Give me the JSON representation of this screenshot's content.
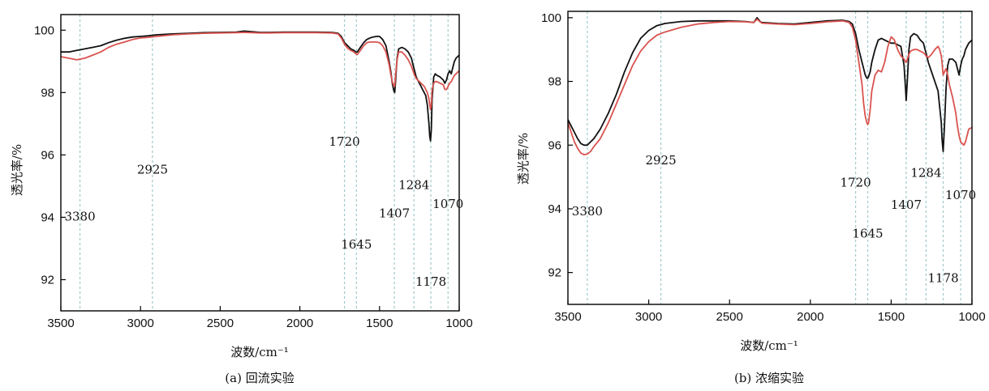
{
  "chart_data": [
    {
      "type": "line",
      "caption": "(a) 回流实验",
      "xlabel": "波数/cm⁻¹",
      "ylabel": "透光率/%",
      "xlim": [
        3500,
        1000
      ],
      "ylim": [
        91,
        100.5
      ],
      "x_ticks": [
        "3500",
        "3000",
        "2500",
        "2000",
        "1500",
        "1000"
      ],
      "y_ticks": [
        "92",
        "94",
        "96",
        "98",
        "100"
      ],
      "reference_lines": [
        3380,
        2925,
        1720,
        1645,
        1407,
        1284,
        1178,
        1070
      ],
      "annotations": [
        {
          "text": "3380",
          "x": 3380,
          "y": 93.9
        },
        {
          "text": "2925",
          "x": 2925,
          "y": 95.4
        },
        {
          "text": "1720",
          "x": 1720,
          "y": 96.3
        },
        {
          "text": "1645",
          "x": 1645,
          "y": 93.0
        },
        {
          "text": "1407",
          "x": 1407,
          "y": 94.0
        },
        {
          "text": "1284",
          "x": 1284,
          "y": 94.9
        },
        {
          "text": "1178",
          "x": 1178,
          "y": 91.8
        },
        {
          "text": "1070",
          "x": 1070,
          "y": 94.3
        }
      ],
      "series": [
        {
          "color": "#111111",
          "x": [
            3500,
            3450,
            3400,
            3350,
            3300,
            3250,
            3200,
            3150,
            3100,
            3050,
            3000,
            2950,
            2900,
            2800,
            2700,
            2600,
            2500,
            2400,
            2350,
            2300,
            2250,
            2200,
            2100,
            2000,
            1900,
            1800,
            1760,
            1740,
            1720,
            1700,
            1680,
            1660,
            1650,
            1640,
            1620,
            1600,
            1580,
            1560,
            1540,
            1520,
            1500,
            1480,
            1460,
            1440,
            1430,
            1420,
            1410,
            1405,
            1400,
            1390,
            1380,
            1360,
            1340,
            1320,
            1300,
            1290,
            1280,
            1270,
            1260,
            1250,
            1240,
            1230,
            1220,
            1210,
            1200,
            1190,
            1185,
            1180,
            1175,
            1170,
            1160,
            1150,
            1140,
            1120,
            1100,
            1090,
            1080,
            1070,
            1060,
            1050,
            1040,
            1030,
            1020,
            1000
          ],
          "y": [
            99.3,
            99.3,
            99.35,
            99.4,
            99.45,
            99.5,
            99.6,
            99.68,
            99.74,
            99.78,
            99.8,
            99.82,
            99.85,
            99.88,
            99.9,
            99.92,
            99.93,
            99.94,
            99.97,
            99.95,
            99.93,
            99.93,
            99.94,
            99.94,
            99.94,
            99.93,
            99.9,
            99.8,
            99.6,
            99.5,
            99.4,
            99.35,
            99.3,
            99.3,
            99.45,
            99.6,
            99.7,
            99.75,
            99.78,
            99.8,
            99.8,
            99.7,
            99.5,
            99.0,
            98.7,
            98.3,
            98.05,
            98.0,
            98.3,
            99.1,
            99.4,
            99.45,
            99.4,
            99.3,
            99.1,
            98.9,
            98.7,
            98.5,
            98.4,
            98.3,
            98.2,
            98.1,
            98.0,
            97.9,
            97.6,
            97.0,
            96.6,
            96.45,
            96.8,
            97.8,
            98.5,
            98.6,
            98.55,
            98.5,
            98.4,
            98.3,
            98.4,
            98.6,
            98.7,
            98.6,
            98.8,
            99.0,
            99.1,
            99.2
          ]
        },
        {
          "color": "#d9534f",
          "x": [
            3500,
            3450,
            3400,
            3350,
            3300,
            3250,
            3200,
            3150,
            3100,
            3050,
            3000,
            2950,
            2900,
            2800,
            2700,
            2600,
            2500,
            2400,
            2350,
            2300,
            2250,
            2200,
            2100,
            2000,
            1900,
            1800,
            1760,
            1740,
            1720,
            1700,
            1680,
            1660,
            1650,
            1640,
            1620,
            1600,
            1580,
            1560,
            1540,
            1520,
            1500,
            1480,
            1460,
            1440,
            1430,
            1420,
            1410,
            1405,
            1400,
            1390,
            1380,
            1360,
            1340,
            1320,
            1300,
            1290,
            1280,
            1270,
            1260,
            1250,
            1240,
            1230,
            1220,
            1210,
            1200,
            1190,
            1185,
            1180,
            1175,
            1170,
            1160,
            1150,
            1140,
            1120,
            1100,
            1090,
            1080,
            1070,
            1060,
            1050,
            1040,
            1030,
            1020,
            1000
          ],
          "y": [
            99.15,
            99.1,
            99.05,
            99.1,
            99.2,
            99.3,
            99.45,
            99.55,
            99.62,
            99.7,
            99.75,
            99.77,
            99.8,
            99.85,
            99.88,
            99.9,
            99.91,
            99.92,
            99.93,
            99.92,
            99.91,
            99.91,
            99.92,
            99.92,
            99.92,
            99.91,
            99.88,
            99.75,
            99.55,
            99.42,
            99.35,
            99.3,
            99.25,
            99.22,
            99.35,
            99.5,
            99.6,
            99.62,
            99.62,
            99.62,
            99.6,
            99.5,
            99.3,
            98.9,
            98.6,
            98.35,
            98.2,
            98.2,
            98.5,
            99.05,
            99.3,
            99.3,
            99.2,
            99.05,
            98.85,
            98.7,
            98.55,
            98.45,
            98.4,
            98.35,
            98.3,
            98.25,
            98.2,
            98.1,
            98.0,
            97.8,
            97.6,
            97.45,
            97.6,
            98.1,
            98.3,
            98.35,
            98.35,
            98.3,
            98.25,
            98.1,
            98.1,
            98.2,
            98.3,
            98.35,
            98.45,
            98.55,
            98.6,
            98.7
          ]
        }
      ]
    },
    {
      "type": "line",
      "caption": "(b) 浓缩实验",
      "xlabel": "波数/cm⁻¹",
      "ylabel": "透光率/%",
      "xlim": [
        3500,
        1000
      ],
      "ylim": [
        91,
        100.2
      ],
      "x_ticks": [
        "3500",
        "3000",
        "2500",
        "2000",
        "1500",
        "1000"
      ],
      "y_ticks": [
        "92",
        "94",
        "96",
        "98",
        "100"
      ],
      "reference_lines": [
        3380,
        2925,
        1720,
        1645,
        1407,
        1284,
        1178,
        1070
      ],
      "annotations": [
        {
          "text": "3380",
          "x": 3380,
          "y": 93.8
        },
        {
          "text": "2925",
          "x": 2925,
          "y": 95.4
        },
        {
          "text": "1720",
          "x": 1720,
          "y": 94.7
        },
        {
          "text": "1645",
          "x": 1645,
          "y": 93.1
        },
        {
          "text": "1407",
          "x": 1407,
          "y": 94.0
        },
        {
          "text": "1284",
          "x": 1284,
          "y": 95.0
        },
        {
          "text": "1178",
          "x": 1178,
          "y": 91.7
        },
        {
          "text": "1070",
          "x": 1070,
          "y": 94.3
        }
      ],
      "series": [
        {
          "color": "#111111",
          "x": [
            3500,
            3480,
            3460,
            3440,
            3420,
            3400,
            3380,
            3360,
            3340,
            3300,
            3250,
            3200,
            3150,
            3100,
            3050,
            3000,
            2950,
            2900,
            2800,
            2700,
            2600,
            2500,
            2400,
            2350,
            2330,
            2310,
            2300,
            2200,
            2100,
            2000,
            1900,
            1800,
            1760,
            1740,
            1720,
            1700,
            1680,
            1670,
            1660,
            1650,
            1645,
            1640,
            1630,
            1620,
            1600,
            1580,
            1560,
            1540,
            1520,
            1500,
            1480,
            1460,
            1440,
            1420,
            1410,
            1407,
            1400,
            1390,
            1380,
            1360,
            1340,
            1320,
            1300,
            1290,
            1284,
            1270,
            1250,
            1230,
            1210,
            1200,
            1190,
            1185,
            1180,
            1178,
            1170,
            1160,
            1150,
            1140,
            1120,
            1100,
            1090,
            1080,
            1070,
            1060,
            1050,
            1040,
            1030,
            1020,
            1000
          ],
          "y": [
            96.8,
            96.6,
            96.4,
            96.2,
            96.05,
            96.0,
            96.0,
            96.1,
            96.2,
            96.5,
            97.0,
            97.6,
            98.3,
            98.9,
            99.35,
            99.6,
            99.75,
            99.82,
            99.88,
            99.9,
            99.9,
            99.9,
            99.88,
            99.85,
            100.0,
            99.88,
            99.85,
            99.82,
            99.8,
            99.85,
            99.9,
            99.92,
            99.88,
            99.8,
            99.5,
            99.0,
            98.6,
            98.4,
            98.2,
            98.1,
            98.1,
            98.15,
            98.3,
            98.6,
            99.0,
            99.3,
            99.35,
            99.3,
            99.25,
            99.2,
            99.2,
            99.15,
            99.1,
            98.5,
            97.7,
            97.4,
            98.0,
            99.0,
            99.4,
            99.5,
            99.45,
            99.3,
            99.2,
            99.0,
            98.9,
            98.6,
            98.3,
            98.0,
            97.7,
            97.2,
            96.7,
            96.2,
            95.9,
            95.8,
            96.6,
            97.8,
            98.5,
            98.7,
            98.7,
            98.6,
            98.4,
            98.2,
            98.5,
            98.7,
            98.8,
            99.0,
            99.1,
            99.2,
            99.3
          ]
        },
        {
          "color": "#d9534f",
          "x": [
            3500,
            3480,
            3460,
            3440,
            3420,
            3400,
            3380,
            3360,
            3340,
            3300,
            3250,
            3200,
            3150,
            3100,
            3050,
            3000,
            2950,
            2900,
            2800,
            2700,
            2600,
            2500,
            2400,
            2350,
            2330,
            2310,
            2300,
            2200,
            2100,
            2000,
            1900,
            1800,
            1760,
            1740,
            1720,
            1700,
            1680,
            1670,
            1660,
            1650,
            1645,
            1640,
            1630,
            1620,
            1600,
            1580,
            1560,
            1540,
            1520,
            1500,
            1480,
            1460,
            1440,
            1420,
            1410,
            1407,
            1400,
            1390,
            1380,
            1360,
            1340,
            1320,
            1300,
            1290,
            1284,
            1270,
            1250,
            1230,
            1210,
            1200,
            1190,
            1185,
            1180,
            1178,
            1170,
            1160,
            1150,
            1140,
            1120,
            1100,
            1090,
            1080,
            1070,
            1060,
            1050,
            1040,
            1030,
            1020,
            1000
          ],
          "y": [
            96.7,
            96.4,
            96.1,
            95.9,
            95.75,
            95.7,
            95.72,
            95.8,
            95.95,
            96.2,
            96.7,
            97.3,
            97.9,
            98.5,
            98.95,
            99.25,
            99.45,
            99.55,
            99.7,
            99.8,
            99.85,
            99.88,
            99.87,
            99.85,
            99.95,
            99.87,
            99.83,
            99.8,
            99.78,
            99.82,
            99.87,
            99.9,
            99.85,
            99.7,
            99.3,
            98.6,
            97.9,
            97.3,
            96.9,
            96.7,
            96.65,
            96.7,
            97.1,
            97.7,
            98.2,
            98.35,
            98.3,
            98.6,
            99.1,
            99.4,
            99.3,
            99.0,
            98.8,
            98.7,
            98.6,
            98.6,
            98.7,
            98.85,
            98.95,
            99.0,
            99.0,
            98.95,
            98.9,
            98.85,
            98.8,
            98.75,
            98.85,
            99.0,
            99.1,
            99.0,
            98.8,
            98.6,
            98.3,
            98.2,
            98.3,
            98.4,
            98.2,
            97.9,
            97.5,
            97.0,
            96.6,
            96.3,
            96.1,
            96.05,
            96.0,
            96.1,
            96.3,
            96.5,
            96.55
          ]
        }
      ]
    }
  ]
}
